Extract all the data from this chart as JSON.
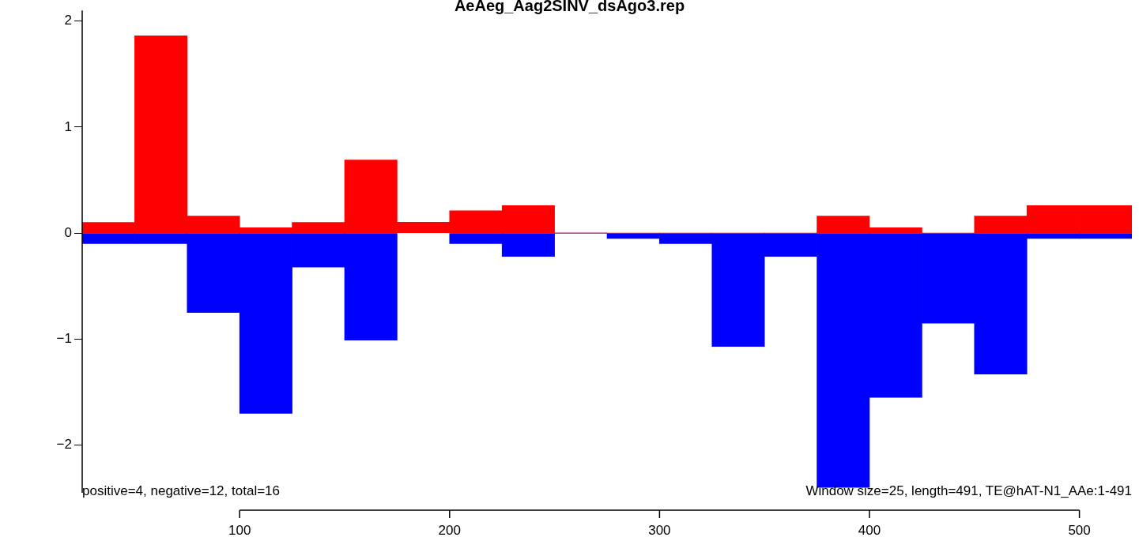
{
  "chart_data": {
    "type": "bar",
    "title": "AeAeg_Aag2SINV_dsAgo3.rep",
    "stacked": true,
    "x": [
      37.5,
      62.5,
      87.5,
      112.5,
      137.5,
      162.5,
      187.5,
      212.5,
      237.5,
      262.5,
      287.5,
      312.5,
      337.5,
      362.5,
      387.5,
      412.5,
      437.5,
      462.5,
      487.5,
      512.5
    ],
    "series": [
      {
        "color": "#ff0000",
        "values": [
          0.1,
          1.86,
          0.16,
          0.05,
          0.1,
          0.69,
          0.1,
          0.21,
          0.26,
          0,
          0,
          0,
          0,
          0,
          0.16,
          0.05,
          0,
          0.16,
          0.26,
          0.26
        ]
      },
      {
        "color": "#0000ff",
        "values": [
          -0.1,
          -0.1,
          -0.75,
          -1.7,
          -0.32,
          -1.01,
          0,
          -0.1,
          -0.22,
          0,
          -0.05,
          -0.1,
          -1.07,
          -0.22,
          -2.4,
          -1.55,
          -0.85,
          -1.33,
          -0.05,
          -0.05
        ]
      }
    ],
    "xlim": [
      25,
      525
    ],
    "xticks": [
      100,
      200,
      300,
      400,
      500
    ],
    "ylim": [
      -2.45,
      2.1
    ],
    "yticks": [
      -2,
      -1,
      0,
      1,
      2
    ],
    "grid": false,
    "legend": false,
    "annotations": [
      "positive=4, negative=12, total=16",
      "Window size=25, length=491, TE@hAT-N1_AAe:1-491"
    ]
  }
}
